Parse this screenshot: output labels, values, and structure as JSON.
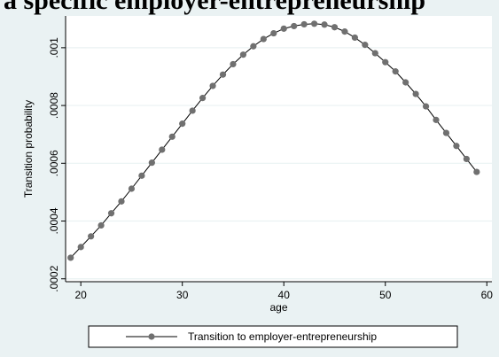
{
  "header": {
    "title_fragment": "a specific employer-entrepreneurship"
  },
  "colors": {
    "background": "#eaf2f3",
    "plot_region": "#ffffff",
    "grid": "#eaf2f3",
    "marker": "#707070",
    "line": "#000000"
  },
  "chart_data": {
    "type": "line",
    "xlabel": "age",
    "ylabel": "Transition probability",
    "xlim": [
      18.5,
      60.5
    ],
    "ylim": [
      0.00019,
      0.00111
    ],
    "x_ticks": [
      20,
      30,
      40,
      50,
      60
    ],
    "x_tick_labels": [
      "20",
      "30",
      "40",
      "50",
      "60"
    ],
    "y_ticks": [
      0.0002,
      0.0004,
      0.0006,
      0.0008,
      0.001
    ],
    "y_tick_labels": [
      ".0002",
      ".0004",
      ".0006",
      ".0008",
      ".001"
    ],
    "grid": true,
    "legend_position": "bottom",
    "series": [
      {
        "name": "Transition to employer-entrepreneurship",
        "x": [
          19,
          20,
          21,
          22,
          23,
          24,
          25,
          26,
          27,
          28,
          29,
          30,
          31,
          32,
          33,
          34,
          35,
          36,
          37,
          38,
          39,
          40,
          41,
          42,
          43,
          44,
          45,
          46,
          47,
          48,
          49,
          50,
          51,
          52,
          53,
          54,
          55,
          56,
          57,
          58,
          59
        ],
        "y": [
          0.000273,
          0.00031,
          0.000347,
          0.000385,
          0.000427,
          0.000468,
          0.000512,
          0.000557,
          0.000602,
          0.000647,
          0.000692,
          0.000737,
          0.000782,
          0.000826,
          0.000868,
          0.000907,
          0.000943,
          0.000976,
          0.001005,
          0.00103,
          0.00105,
          0.001066,
          0.001075,
          0.001081,
          0.001083,
          0.00108,
          0.001071,
          0.001056,
          0.001035,
          0.00101,
          0.000981,
          0.00095,
          0.000918,
          0.00088,
          0.00084,
          0.000797,
          0.00075,
          0.000705,
          0.00066,
          0.000615,
          0.00057
        ]
      }
    ]
  }
}
